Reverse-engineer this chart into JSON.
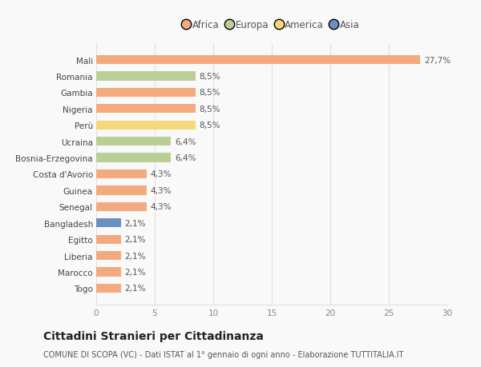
{
  "categories": [
    "Mali",
    "Romania",
    "Gambia",
    "Nigeria",
    "Perù",
    "Ucraina",
    "Bosnia-Erzegovina",
    "Costa d'Avorio",
    "Guinea",
    "Senegal",
    "Bangladesh",
    "Egitto",
    "Liberia",
    "Marocco",
    "Togo"
  ],
  "values": [
    27.7,
    8.5,
    8.5,
    8.5,
    8.5,
    6.4,
    6.4,
    4.3,
    4.3,
    4.3,
    2.1,
    2.1,
    2.1,
    2.1,
    2.1
  ],
  "continents": [
    "Africa",
    "Europa",
    "Africa",
    "Africa",
    "America",
    "Europa",
    "Europa",
    "Africa",
    "Africa",
    "Africa",
    "Asia",
    "Africa",
    "Africa",
    "Africa",
    "Africa"
  ],
  "labels": [
    "27,7%",
    "8,5%",
    "8,5%",
    "8,5%",
    "8,5%",
    "6,4%",
    "6,4%",
    "4,3%",
    "4,3%",
    "4,3%",
    "2,1%",
    "2,1%",
    "2,1%",
    "2,1%",
    "2,1%"
  ],
  "colors": {
    "Africa": "#F2AA7E",
    "Europa": "#BACF96",
    "America": "#F5D87A",
    "Asia": "#6B8FBF"
  },
  "legend_order": [
    "Africa",
    "Europa",
    "America",
    "Asia"
  ],
  "xlim": [
    0,
    30
  ],
  "xticks": [
    0,
    5,
    10,
    15,
    20,
    25,
    30
  ],
  "title": "Cittadini Stranieri per Cittadinanza",
  "subtitle": "COMUNE DI SCOPA (VC) - Dati ISTAT al 1° gennaio di ogni anno - Elaborazione TUTTITALIA.IT",
  "bg_color": "#f9f9f9",
  "grid_color": "#e0e0e0",
  "bar_height": 0.55,
  "label_fontsize": 7.5,
  "tick_fontsize": 7.5,
  "title_fontsize": 10,
  "subtitle_fontsize": 7.0,
  "legend_fontsize": 8.5
}
